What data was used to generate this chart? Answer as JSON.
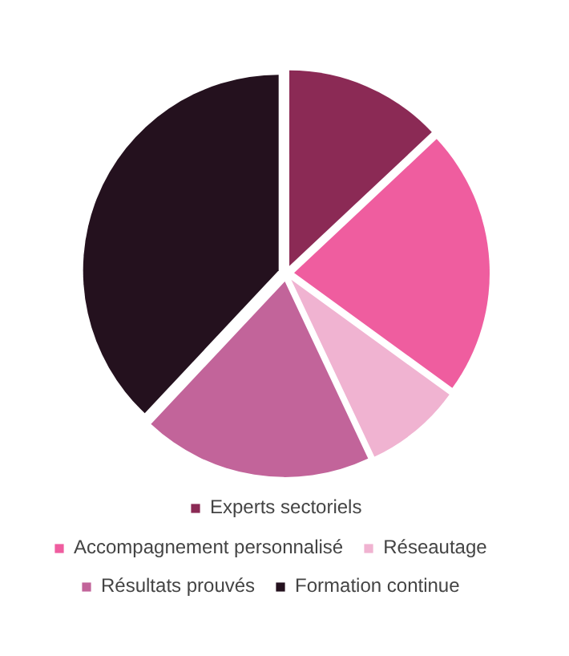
{
  "chart_data": {
    "type": "pie",
    "categories": [
      "Experts sectoriels",
      "Accompagnement personnalisé",
      "Réseautage",
      "Résultats prouvés",
      "Formation continue"
    ],
    "values": [
      13,
      22,
      8,
      19,
      38
    ],
    "colors": [
      "#8b2a55",
      "#ef5d9f",
      "#f0b3d1",
      "#c2649a",
      "#24111e"
    ],
    "legend": "bottom"
  }
}
